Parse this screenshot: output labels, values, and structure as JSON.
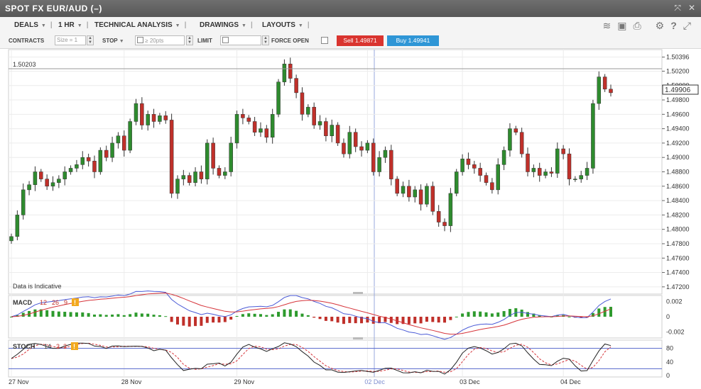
{
  "window": {
    "title": "SPOT FX EUR/AUD (–)"
  },
  "menu": [
    {
      "label": "DEALS"
    },
    {
      "label": "1 HR"
    },
    {
      "label": "TECHNICAL ANALYSIS"
    },
    {
      "label": "DRAWINGS"
    },
    {
      "label": "LAYOUTS"
    }
  ],
  "toolbar": {
    "contracts_label": "CONTRACTS",
    "size_placeholder": "Size = 1",
    "stop_label": "STOP",
    "stop_placeholder": "≥ 20pts",
    "limit_label": "LIMIT",
    "force_open_label": "FORCE OPEN",
    "sell_label": "Sell 1.49871",
    "buy_label": "Buy 1.49941",
    "sell_color": "#d9342f",
    "buy_color": "#2f96d6"
  },
  "tool_icons": [
    "layers-icon",
    "image-icon",
    "print-icon",
    "gear-icon",
    "help-icon",
    "expand-icon"
  ],
  "chart_data": {
    "type": "candlestick",
    "price_axis": {
      "ticks": [
        "1.50396",
        "1.50200",
        "1.50000",
        "1.49800",
        "1.49600",
        "1.49400",
        "1.49200",
        "1.49000",
        "1.48800",
        "1.48600",
        "1.48400",
        "1.48200",
        "1.48000",
        "1.47800",
        "1.47600",
        "1.47400",
        "1.47200"
      ],
      "range": [
        1.471,
        1.505
      ]
    },
    "current_price": "1.49906",
    "reference_line": "1.50203",
    "note": "Data is Indicative",
    "dates": [
      "27 Nov",
      "28 Nov",
      "29 Nov",
      "02 Dec",
      "03 Dec",
      "04 Dec"
    ],
    "up_color": "#2e8b2e",
    "down_color": "#c0302a",
    "closes": [
      1.479,
      1.482,
      1.4855,
      1.4862,
      1.488,
      1.487,
      1.486,
      1.4865,
      1.487,
      1.488,
      1.4885,
      1.489,
      1.49,
      1.4895,
      1.488,
      1.491,
      1.49,
      1.492,
      1.493,
      1.491,
      1.495,
      1.4975,
      1.4945,
      1.496,
      1.495,
      1.4958,
      1.4952,
      1.485,
      1.487,
      1.4875,
      1.4865,
      1.488,
      1.487,
      1.492,
      1.4885,
      1.4875,
      1.488,
      1.492,
      1.496,
      1.4955,
      1.495,
      1.4935,
      1.494,
      1.4928,
      1.496,
      1.5005,
      1.503,
      1.501,
      1.499,
      1.496,
      1.497,
      1.4945,
      1.495,
      1.493,
      1.4945,
      1.492,
      1.4905,
      1.4935,
      1.4915,
      1.491,
      1.492,
      1.488,
      1.49,
      1.491,
      1.487,
      1.485,
      1.486,
      1.4845,
      1.4855,
      1.4835,
      1.486,
      1.4825,
      1.481,
      1.4805,
      1.485,
      1.488,
      1.4898,
      1.489,
      1.4885,
      1.4875,
      1.4865,
      1.4855,
      1.489,
      1.491,
      1.494,
      1.4935,
      1.4905,
      1.488,
      1.4885,
      1.4875,
      1.488,
      1.4878,
      1.4912,
      1.4905,
      1.487,
      1.487,
      1.4875,
      1.4885,
      1.4975,
      1.5012,
      1.4995,
      1.499
    ],
    "macd": {
      "label": "MACD",
      "params": [
        "12",
        "26",
        "9"
      ],
      "ticks": [
        "0.002",
        "0",
        "-0.002"
      ],
      "range": [
        -0.0028,
        0.0028
      ]
    },
    "stoch": {
      "label": "STOCH",
      "params": [
        "14",
        "3",
        "3"
      ],
      "ticks": [
        "80",
        "40",
        "0"
      ],
      "range": [
        0,
        100
      ]
    }
  }
}
